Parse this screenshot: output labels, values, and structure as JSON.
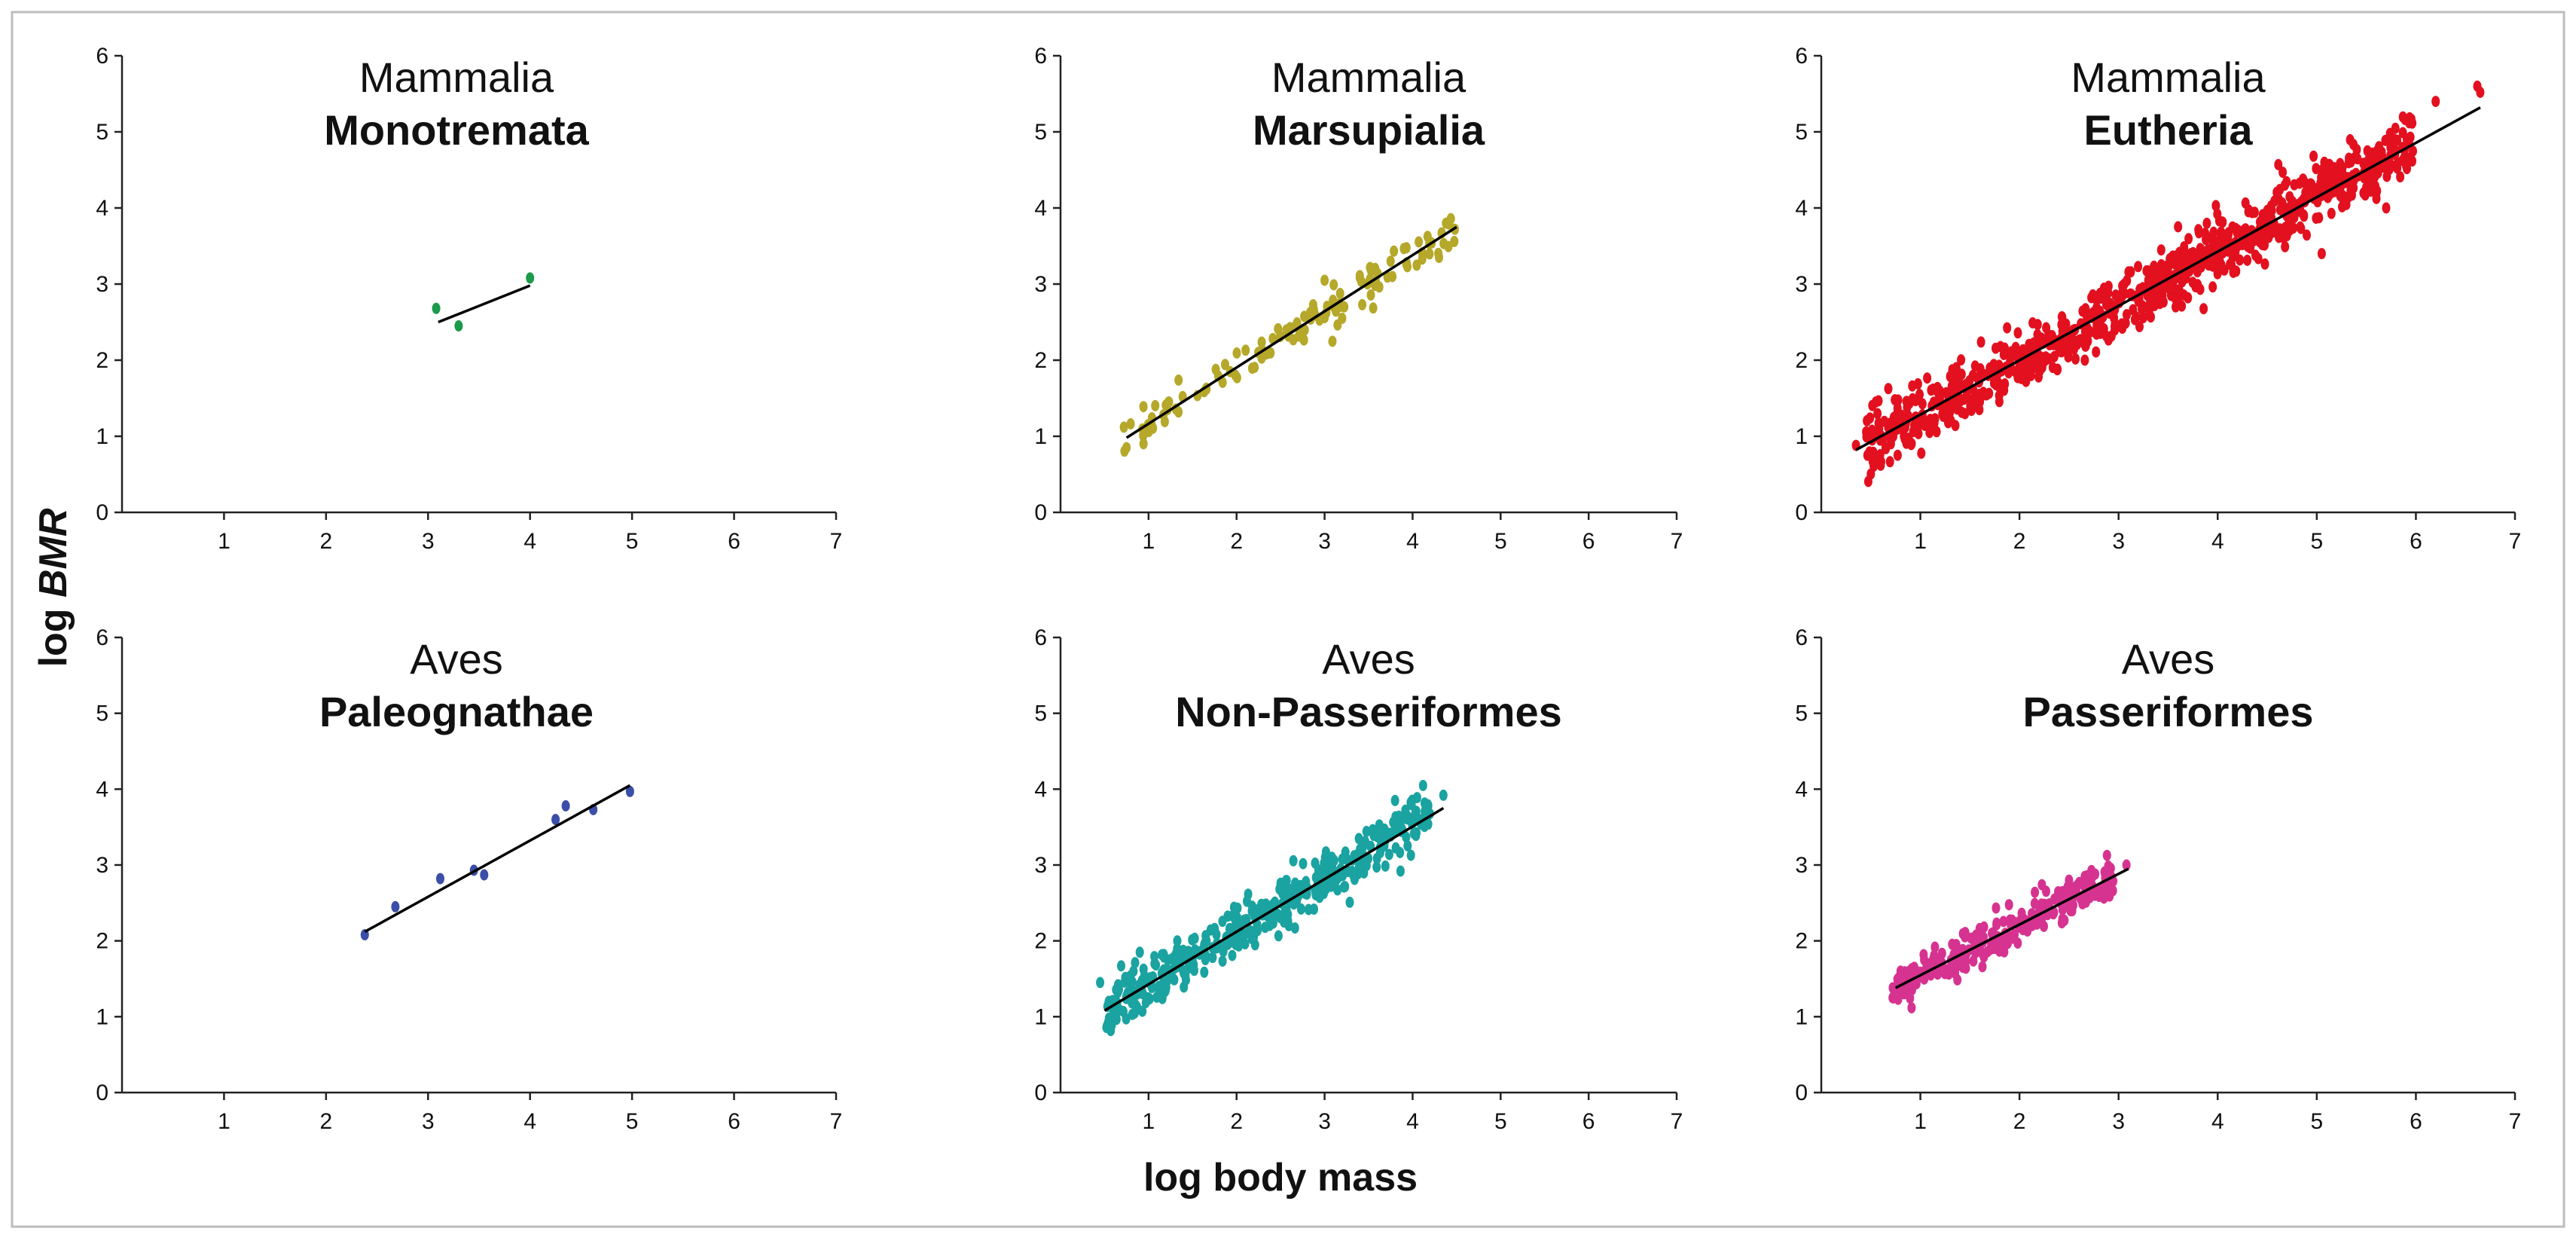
{
  "figure": {
    "xlabel": "log body mass",
    "ylabel_prefix": "log ",
    "ylabel_emph": "BMR"
  },
  "chart_data": [
    {
      "type": "scatter",
      "group": "Mammalia",
      "order": "Monotremata",
      "color": "#1a9a4a",
      "xlim": [
        0,
        7
      ],
      "ylim": [
        0,
        6
      ],
      "xticks": [
        1,
        2,
        3,
        4,
        5,
        6,
        7
      ],
      "yticks": [
        0,
        1,
        2,
        3,
        4,
        5,
        6
      ],
      "fit": [
        [
          3.1,
          2.5
        ],
        [
          4.0,
          2.98
        ]
      ],
      "points": [
        [
          3.08,
          2.68
        ],
        [
          3.3,
          2.45
        ],
        [
          4.0,
          3.08
        ]
      ],
      "cloud": null
    },
    {
      "type": "scatter",
      "group": "Mammalia",
      "order": "Marsupialia",
      "color": "#b5a82a",
      "xlim": [
        0,
        7
      ],
      "ylim": [
        0,
        6
      ],
      "xticks": [
        1,
        2,
        3,
        4,
        5,
        6,
        7
      ],
      "yticks": [
        0,
        1,
        2,
        3,
        4,
        5,
        6
      ],
      "fit": [
        [
          0.75,
          0.98
        ],
        [
          4.5,
          3.75
        ]
      ],
      "points": [
        [
          0.72,
          1.12
        ],
        [
          0.75,
          0.85
        ],
        [
          4.38,
          3.8
        ],
        [
          4.48,
          3.72
        ],
        [
          4.3,
          3.35
        ],
        [
          3.0,
          3.05
        ],
        [
          3.75,
          3.3
        ],
        [
          3.2,
          2.55
        ]
      ],
      "cloud": {
        "x": [
          0.7,
          4.5
        ],
        "slope": 0.735,
        "intercept": 0.43,
        "spread": 0.12,
        "n": 120,
        "seed": 11
      }
    },
    {
      "type": "scatter",
      "group": "Mammalia",
      "order": "Eutheria",
      "color": "#e3101f",
      "xlim": [
        0,
        7
      ],
      "ylim": [
        0,
        6
      ],
      "xticks": [
        1,
        2,
        3,
        4,
        5,
        6,
        7
      ],
      "yticks": [
        0,
        1,
        2,
        3,
        4,
        5,
        6
      ],
      "fit": [
        [
          0.35,
          0.82
        ],
        [
          6.65,
          5.32
        ]
      ],
      "points": [
        [
          0.35,
          0.88
        ],
        [
          0.6,
          0.62
        ],
        [
          6.2,
          5.4
        ],
        [
          6.62,
          5.6
        ],
        [
          6.65,
          5.52
        ],
        [
          5.7,
          4.0
        ],
        [
          5.05,
          3.4
        ],
        [
          0.55,
          1.45
        ]
      ],
      "cloud": {
        "x": [
          0.45,
          6.0
        ],
        "slope": 0.714,
        "intercept": 0.57,
        "spread": 0.2,
        "n": 900,
        "seed": 7
      }
    },
    {
      "type": "scatter",
      "group": "Aves",
      "order": "Paleognathae",
      "color": "#3b4ea8",
      "xlim": [
        0,
        7
      ],
      "ylim": [
        0,
        6
      ],
      "xticks": [
        1,
        2,
        3,
        4,
        5,
        6,
        7
      ],
      "yticks": [
        0,
        1,
        2,
        3,
        4,
        5,
        6
      ],
      "fit": [
        [
          2.38,
          2.12
        ],
        [
          4.98,
          4.05
        ]
      ],
      "points": [
        [
          2.38,
          2.08
        ],
        [
          2.68,
          2.45
        ],
        [
          3.12,
          2.82
        ],
        [
          3.45,
          2.93
        ],
        [
          3.55,
          2.87
        ],
        [
          4.25,
          3.6
        ],
        [
          4.35,
          3.78
        ],
        [
          4.62,
          3.73
        ],
        [
          4.98,
          3.97
        ]
      ],
      "cloud": null
    },
    {
      "type": "scatter",
      "group": "Aves",
      "order": "Non-Passeriformes",
      "color": "#1aa3a0",
      "xlim": [
        0,
        7
      ],
      "ylim": [
        0,
        6
      ],
      "xticks": [
        1,
        2,
        3,
        4,
        5,
        6,
        7
      ],
      "yticks": [
        0,
        1,
        2,
        3,
        4,
        5,
        6
      ],
      "fit": [
        [
          0.5,
          1.08
        ],
        [
          4.35,
          3.75
        ]
      ],
      "points": [
        [
          0.45,
          1.45
        ],
        [
          0.55,
          0.98
        ],
        [
          4.35,
          3.92
        ],
        [
          4.1,
          3.6
        ],
        [
          3.8,
          3.85
        ],
        [
          0.9,
          1.85
        ]
      ],
      "cloud": {
        "x": [
          0.5,
          4.2
        ],
        "slope": 0.693,
        "intercept": 0.73,
        "spread": 0.17,
        "n": 420,
        "seed": 23
      }
    },
    {
      "type": "scatter",
      "group": "Aves",
      "order": "Passeriformes",
      "color": "#d63390",
      "xlim": [
        0,
        7
      ],
      "ylim": [
        0,
        6
      ],
      "xticks": [
        1,
        2,
        3,
        4,
        5,
        6,
        7
      ],
      "yticks": [
        0,
        1,
        2,
        3,
        4,
        5,
        6
      ],
      "fit": [
        [
          0.75,
          1.38
        ],
        [
          3.1,
          2.95
        ]
      ],
      "points": [
        [
          3.08,
          3.0
        ],
        [
          2.5,
          2.8
        ],
        [
          0.72,
          1.25
        ],
        [
          0.8,
          1.6
        ]
      ],
      "cloud": {
        "x": [
          0.72,
          2.95
        ],
        "slope": 0.668,
        "intercept": 0.88,
        "spread": 0.13,
        "n": 260,
        "seed": 31
      }
    }
  ]
}
